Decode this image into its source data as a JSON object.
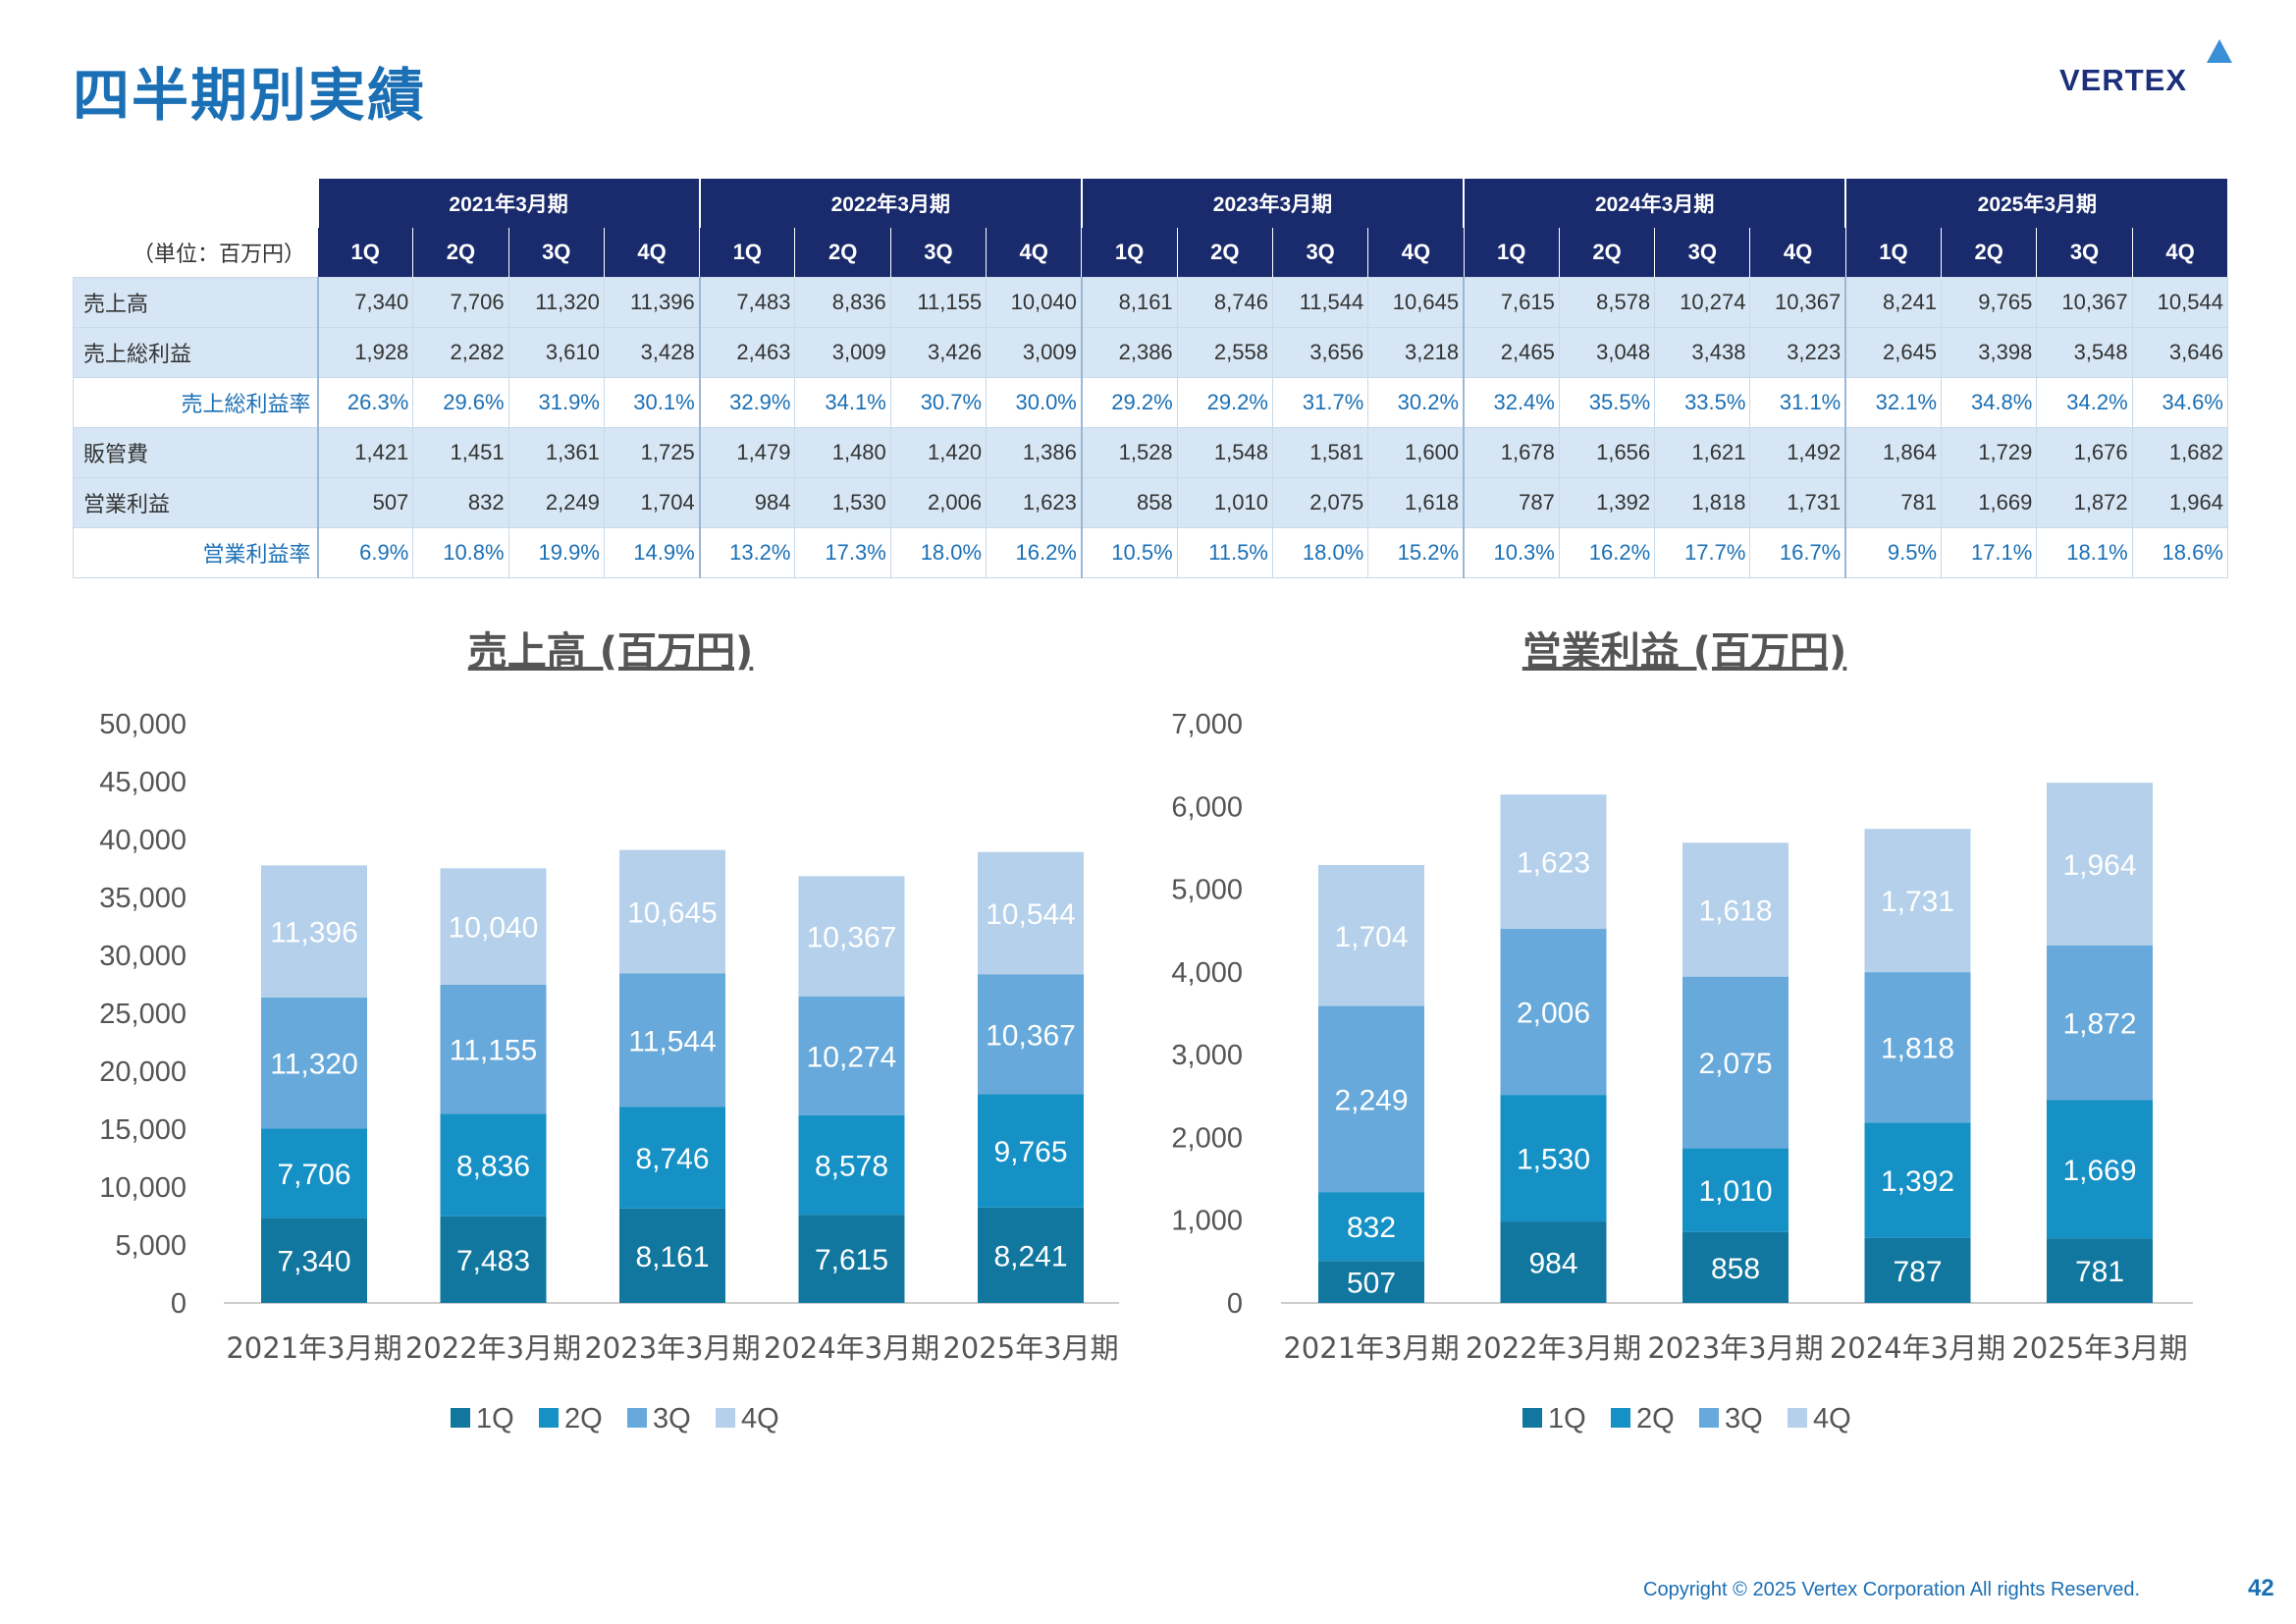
{
  "page": {
    "title": "四半期別実績",
    "logo_text": "VERTEX",
    "copyright": "Copyright © 2025 Vertex Corporation All rights Reserved.",
    "page_number": "42"
  },
  "table": {
    "unit_label": "（単位：百万円）",
    "years": [
      "2021年3月期",
      "2022年3月期",
      "2023年3月期",
      "2024年3月期",
      "2025年3月期"
    ],
    "quarters": [
      "1Q",
      "2Q",
      "3Q",
      "4Q"
    ],
    "rows": [
      {
        "label": "売上高",
        "type": "main",
        "values": [
          "7,340",
          "7,706",
          "11,320",
          "11,396",
          "7,483",
          "8,836",
          "11,155",
          "10,040",
          "8,161",
          "8,746",
          "11,544",
          "10,645",
          "7,615",
          "8,578",
          "10,274",
          "10,367",
          "8,241",
          "9,765",
          "10,367",
          "10,544"
        ]
      },
      {
        "label": "売上総利益",
        "type": "main",
        "values": [
          "1,928",
          "2,282",
          "3,610",
          "3,428",
          "2,463",
          "3,009",
          "3,426",
          "3,009",
          "2,386",
          "2,558",
          "3,656",
          "3,218",
          "2,465",
          "3,048",
          "3,438",
          "3,223",
          "2,645",
          "3,398",
          "3,548",
          "3,646"
        ]
      },
      {
        "label": "売上総利益率",
        "type": "rate",
        "values": [
          "26.3%",
          "29.6%",
          "31.9%",
          "30.1%",
          "32.9%",
          "34.1%",
          "30.7%",
          "30.0%",
          "29.2%",
          "29.2%",
          "31.7%",
          "30.2%",
          "32.4%",
          "35.5%",
          "33.5%",
          "31.1%",
          "32.1%",
          "34.8%",
          "34.2%",
          "34.6%"
        ]
      },
      {
        "label": "販管費",
        "type": "main",
        "values": [
          "1,421",
          "1,451",
          "1,361",
          "1,725",
          "1,479",
          "1,480",
          "1,420",
          "1,386",
          "1,528",
          "1,548",
          "1,581",
          "1,600",
          "1,678",
          "1,656",
          "1,621",
          "1,492",
          "1,864",
          "1,729",
          "1,676",
          "1,682"
        ]
      },
      {
        "label": "営業利益",
        "type": "main",
        "values": [
          "507",
          "832",
          "2,249",
          "1,704",
          "984",
          "1,530",
          "2,006",
          "1,623",
          "858",
          "1,010",
          "2,075",
          "1,618",
          "787",
          "1,392",
          "1,818",
          "1,731",
          "781",
          "1,669",
          "1,872",
          "1,964"
        ]
      },
      {
        "label": "営業利益率",
        "type": "rate",
        "values": [
          "6.9%",
          "10.8%",
          "19.9%",
          "14.9%",
          "13.2%",
          "17.3%",
          "18.0%",
          "16.2%",
          "10.5%",
          "11.5%",
          "18.0%",
          "15.2%",
          "10.3%",
          "16.2%",
          "17.7%",
          "16.7%",
          "9.5%",
          "17.1%",
          "18.1%",
          "18.6%"
        ]
      }
    ]
  },
  "colors": {
    "1Q": "#11779f",
    "2Q": "#1691c6",
    "3Q": "#67a9da",
    "4Q": "#b4d0ea",
    "title_blue": "#1a6fb5",
    "header_navy": "#1a2b6d"
  },
  "chart_data": [
    {
      "type": "bar",
      "stacked": true,
      "title": "売上高 (百万円)",
      "categories": [
        "2021年3月期",
        "2022年3月期",
        "2023年3月期",
        "2024年3月期",
        "2025年3月期"
      ],
      "series": [
        {
          "name": "1Q",
          "values": [
            7340,
            7483,
            8161,
            7615,
            8241
          ]
        },
        {
          "name": "2Q",
          "values": [
            7706,
            8836,
            8746,
            8578,
            9765
          ]
        },
        {
          "name": "3Q",
          "values": [
            11320,
            11155,
            11544,
            10274,
            10367
          ]
        },
        {
          "name": "4Q",
          "values": [
            11396,
            10040,
            10645,
            10367,
            10544
          ]
        }
      ],
      "ylim": [
        0,
        50000
      ],
      "yticks": [
        "0",
        "5,000",
        "10,000",
        "15,000",
        "20,000",
        "25,000",
        "30,000",
        "35,000",
        "40,000",
        "45,000",
        "50,000"
      ],
      "legend": "bottom",
      "grid": false
    },
    {
      "type": "bar",
      "stacked": true,
      "title": "営業利益 (百万円)",
      "categories": [
        "2021年3月期",
        "2022年3月期",
        "2023年3月期",
        "2024年3月期",
        "2025年3月期"
      ],
      "series": [
        {
          "name": "1Q",
          "values": [
            507,
            984,
            858,
            787,
            781
          ]
        },
        {
          "name": "2Q",
          "values": [
            832,
            1530,
            1010,
            1392,
            1669
          ]
        },
        {
          "name": "3Q",
          "values": [
            2249,
            2006,
            2075,
            1818,
            1872
          ]
        },
        {
          "name": "4Q",
          "values": [
            1704,
            1623,
            1618,
            1731,
            1964
          ]
        }
      ],
      "ylim": [
        0,
        7000
      ],
      "yticks": [
        "0",
        "1,000",
        "2,000",
        "3,000",
        "4,000",
        "5,000",
        "6,000",
        "7,000"
      ],
      "legend": "bottom",
      "grid": false
    }
  ]
}
